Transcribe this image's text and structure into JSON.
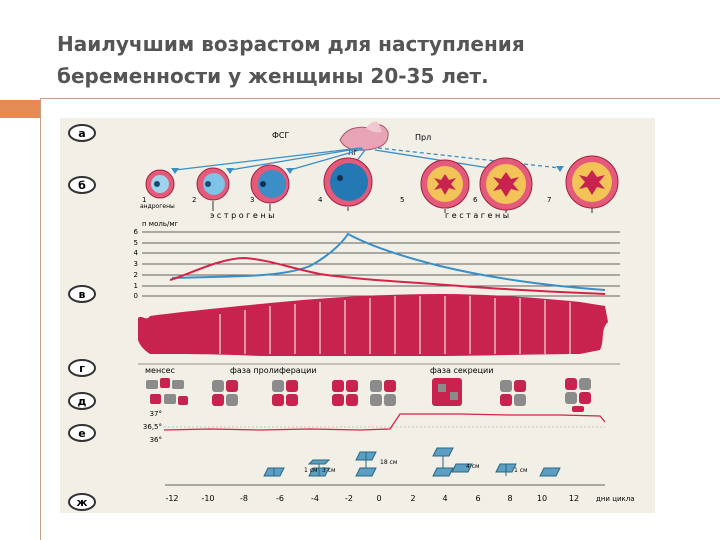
{
  "slide": {
    "title_lines": [
      "Наилучшим возрастом для наступления",
      "беременности у женщины 20-35 лет."
    ]
  },
  "figure": {
    "panel_labels": [
      "а",
      "б",
      "в",
      "г",
      "д",
      "е",
      "ж"
    ],
    "hormones": {
      "fsh": "ФСГ",
      "lh": "ЛГ",
      "prl": "Прл"
    },
    "follicle_numbers": [
      "1",
      "2",
      "3",
      "4",
      "5",
      "6",
      "7"
    ],
    "androgens_label": "андрогены",
    "estrogens_label": "э с т р о г е н ы",
    "gestagens_label": "г е с т а г е н ы",
    "hormone_unit": "п моль/мг",
    "y_ticks": [
      "6",
      "5",
      "4",
      "3",
      "2",
      "1",
      "0"
    ],
    "phases": {
      "menses": "менсес",
      "proliferation": "фаза пролиферации",
      "secretion": "фаза секреции"
    },
    "temperature_ticks": [
      "37°",
      "36,5°",
      "36°"
    ],
    "mucus_labels": [
      "1 см",
      "3 см",
      "18 см",
      "4 см",
      "1 см"
    ],
    "cycle_days": [
      "-12",
      "-10",
      "-8",
      "-6",
      "-4",
      "-2",
      "0",
      "2",
      "4",
      "6",
      "8",
      "10",
      "12"
    ],
    "cycle_axis_label": "дни цикла",
    "colors": {
      "estrogen_line": "#3a8fc7",
      "gestagen_line": "#d6234a",
      "tissue": "#c8234e",
      "background": "#f2efe6"
    }
  }
}
